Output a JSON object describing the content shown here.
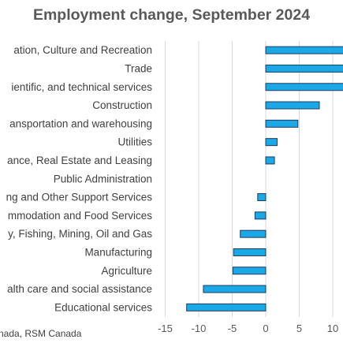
{
  "chart_data": {
    "type": "bar",
    "orientation": "horizontal",
    "title": "Employment change, September 2024",
    "source": "nada, RSM Canada",
    "categories": [
      "ation, Culture and Recreation",
      "Trade",
      "ientific, and technical services",
      "Construction",
      "ansportation and warehousing",
      "Utilities",
      "ance, Real Estate and Leasing",
      "Public Administration",
      "ng and Other Support Services",
      "mmodation and Food Services",
      "y, Fishing, Mining, Oil and Gas",
      "Manufacturing",
      "Agriculture",
      "alth care and social assistance",
      "Educational services"
    ],
    "values": [
      12.0,
      12.0,
      12.0,
      8.0,
      4.8,
      1.7,
      1.3,
      0.0,
      -1.2,
      -1.6,
      -3.8,
      -4.8,
      -4.9,
      -9.3,
      -11.8
    ],
    "xlim": [
      -15,
      10
    ],
    "xticks": [
      -15,
      -10,
      -5,
      0,
      5,
      10
    ],
    "xtick_labels": [
      "-15",
      "-10",
      "-5",
      "0",
      "5",
      "10"
    ],
    "grid": "vertical",
    "legend": "none",
    "bar_color": "#1aa9e6",
    "bar_edge_color": "#1f3b5c",
    "grid_color": "#d9d9d9"
  }
}
